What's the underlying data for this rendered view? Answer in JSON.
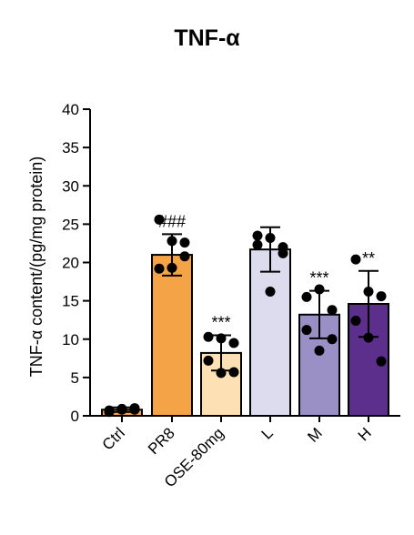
{
  "chart_data": {
    "type": "bar",
    "title": "TNF-α",
    "xlabel": "",
    "ylabel": "TNF-α content/(pg/mg protein)",
    "ylim": [
      0,
      40
    ],
    "yticks": [
      "0",
      "5",
      "10",
      "15",
      "20",
      "25",
      "30",
      "35",
      "40"
    ],
    "categories": [
      "Ctrl",
      "PR8",
      "OSE-80mg",
      "L",
      "M",
      "H"
    ],
    "values": [
      0.8,
      21.0,
      8.2,
      21.7,
      13.2,
      14.6
    ],
    "errors": [
      0.3,
      2.7,
      2.3,
      2.9,
      3.1,
      4.3
    ],
    "annotations": [
      "",
      "###",
      "***",
      "",
      "***",
      "**"
    ],
    "points": [
      [
        0.5,
        0.8,
        1.0,
        0.7,
        0.9,
        0.8
      ],
      [
        25.6,
        22.8,
        20.8,
        19.2,
        19.3,
        22.6
      ],
      [
        10.3,
        10.1,
        9.5,
        7.2,
        5.6,
        5.7
      ],
      [
        23.5,
        23.2,
        22.0,
        22.3,
        16.2,
        21.2
      ],
      [
        15.5,
        16.5,
        13.8,
        11.2,
        8.5,
        10.0
      ],
      [
        20.4,
        16.2,
        15.6,
        12.4,
        10.2,
        7.1
      ]
    ],
    "colors": [
      "#f5a050",
      "#f4a446",
      "#fde0b4",
      "#dcdcee",
      "#9a90c6",
      "#5c2f8c"
    ],
    "grid": false,
    "legend": "none"
  }
}
